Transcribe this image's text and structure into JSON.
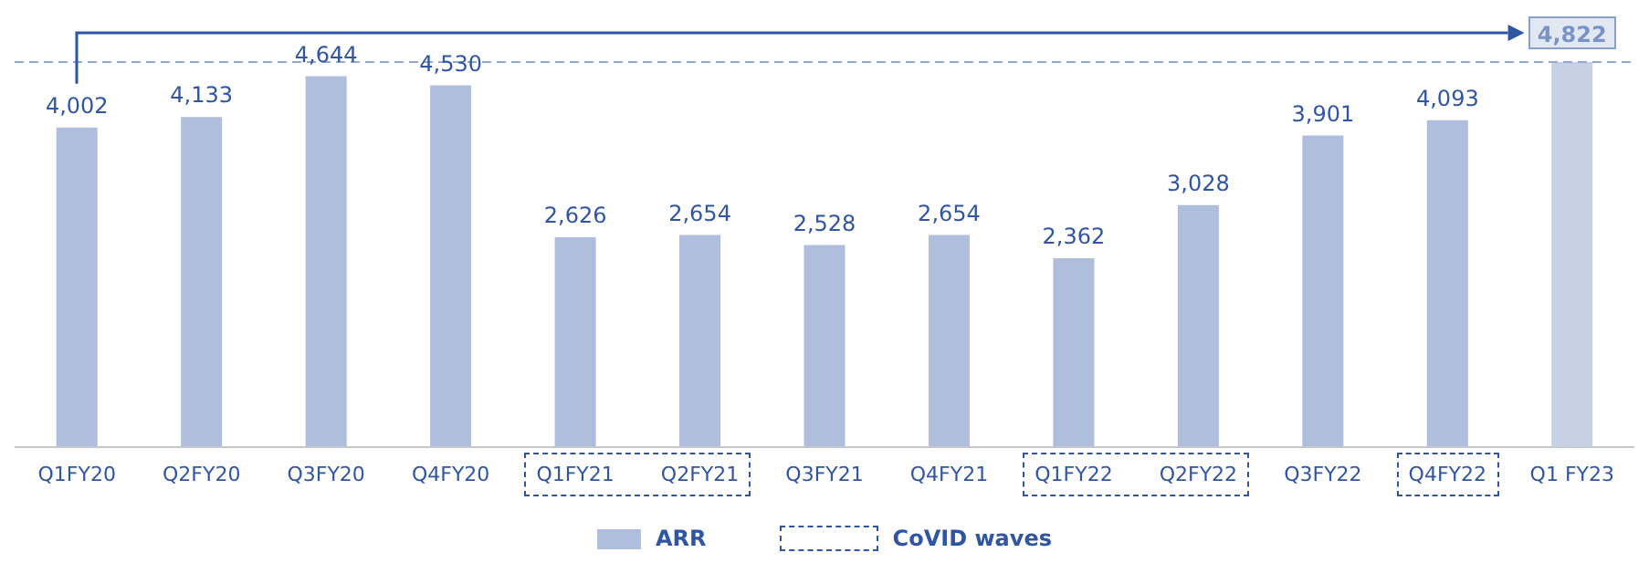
{
  "chart_data": {
    "type": "bar",
    "categories": [
      "Q1FY20",
      "Q2FY20",
      "Q3FY20",
      "Q4FY20",
      "Q1FY21",
      "Q2FY21",
      "Q3FY21",
      "Q4FY21",
      "Q1FY22",
      "Q2FY22",
      "Q3FY22",
      "Q4FY22",
      "Q1 FY23"
    ],
    "series": [
      {
        "name": "ARR",
        "color": "#b0bedd",
        "colors": [
          "#b0bedd",
          "#b0bedd",
          "#b0bedd",
          "#b0bedd",
          "#b0bedd",
          "#b0bedd",
          "#b0bedd",
          "#b0bedd",
          "#b0bedd",
          "#b0bedd",
          "#b0bedd",
          "#b0bedd",
          "#c6d1e6"
        ],
        "values": [
          4002,
          4133,
          4644,
          4530,
          2626,
          2654,
          2528,
          2654,
          2362,
          3028,
          3901,
          4093,
          4822
        ],
        "value_labels": [
          "4,002",
          "4,133",
          "4,644",
          "4,530",
          "2,626",
          "2,654",
          "2,528",
          "2,654",
          "2,362",
          "3,028",
          "3,901",
          "4,093",
          "4,822"
        ]
      }
    ],
    "ref_lines": [
      {
        "axis": "y",
        "value": 4822,
        "color": "#8fa8d6",
        "line_style": "dashed"
      }
    ],
    "annotations": [
      "CoVID waves"
    ],
    "grid": false,
    "legend": "bottom"
  }
}
